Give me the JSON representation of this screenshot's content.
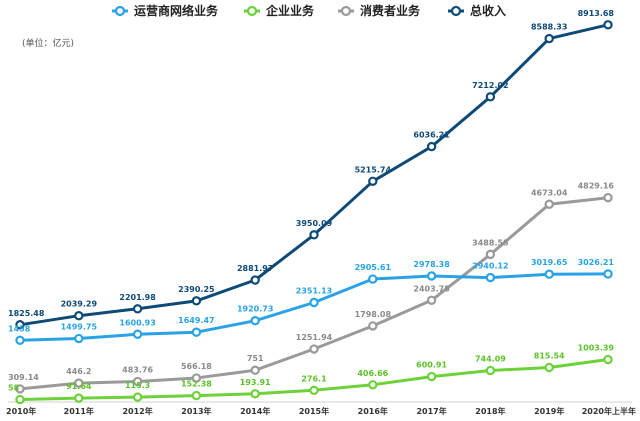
{
  "unit_label": "(单位：亿元)",
  "chart_data": {
    "type": "line",
    "categories": [
      "2010年",
      "2011年",
      "2012年",
      "2013年",
      "2014年",
      "2015年",
      "2016年",
      "2017年",
      "2018年",
      "2019年",
      "2020年上半年"
    ],
    "ylim": [
      0,
      9500
    ],
    "grid": false,
    "legend_position": "top",
    "series": [
      {
        "name": "运营商网络业务",
        "color": "#29A3E6",
        "values": [
          1458,
          1499.75,
          1600.93,
          1649.47,
          1920.73,
          2351.13,
          2905.61,
          2978.38,
          2940.12,
          3019.65,
          3026.21
        ],
        "labels": [
          "1458",
          "1499.75",
          "1600.93",
          "1649.47",
          "1920.73",
          "2351.13",
          "2905.61",
          "2978.38",
          "2940.12",
          "3019.65",
          "3026.21"
        ]
      },
      {
        "name": "企业业务",
        "color": "#6DD23A",
        "values": [
          58,
          91.64,
          115.3,
          152.38,
          193.91,
          276.1,
          406.66,
          600.91,
          744.09,
          815.54,
          1003.39
        ],
        "labels": [
          "58",
          "91.64",
          "115.3",
          "152.38",
          "193.91",
          "276.1",
          "406.66",
          "600.91",
          "744.09",
          "815.54",
          "1003.39"
        ]
      },
      {
        "name": "消费者业务",
        "color": "#9A9A9A",
        "values": [
          309.14,
          446.2,
          483.76,
          566.18,
          751,
          1251.94,
          1798.08,
          2403.75,
          3488.55,
          4673.04,
          4829.16
        ],
        "labels": [
          "309.14",
          "446.2",
          "483.76",
          "566.18",
          "751",
          "1251.94",
          "1798.08",
          "2403.75",
          "3488.55",
          "4673.04",
          "4829.16"
        ]
      },
      {
        "name": "总收入",
        "color": "#0E4A77",
        "values": [
          1825.48,
          2039.29,
          2201.98,
          2390.25,
          2881.97,
          3950.09,
          5215.74,
          6036.21,
          7212.02,
          8588.33,
          8913.68
        ],
        "labels": [
          "1825.48",
          "2039.29",
          "2201.98",
          "2390.25",
          "2881.97",
          "3950.09",
          "5215.74",
          "6036.21",
          "7212.02",
          "8588.33",
          "8913.68"
        ]
      }
    ]
  }
}
